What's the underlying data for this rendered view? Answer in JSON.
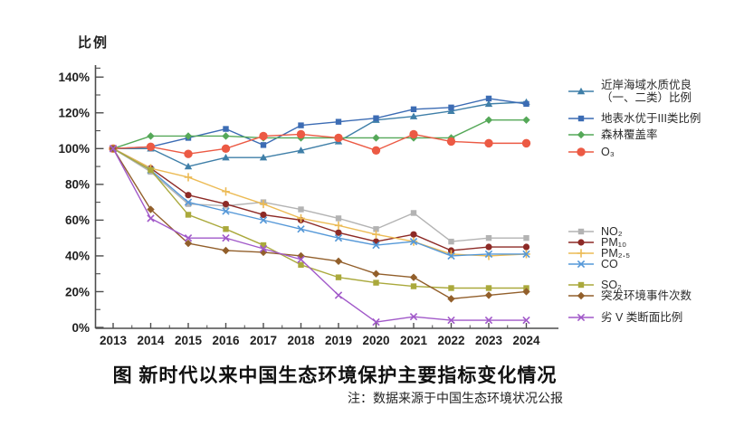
{
  "figure": {
    "title": "图 新时代以来中国生态环境保护主要指标变化情况",
    "note": "注：数据来源于中国生态环境状况公报",
    "y_axis_title": "比例"
  },
  "chart_data": {
    "type": "line",
    "title": "图 新时代以来中国生态环境保护主要指标变化情况",
    "note": "注：数据来源于中国生态环境状况公报",
    "xlabel": "",
    "ylabel": "比例",
    "x": [
      2013,
      2014,
      2015,
      2016,
      2017,
      2018,
      2019,
      2020,
      2021,
      2022,
      2023,
      2024
    ],
    "y_ticks": [
      0,
      20,
      40,
      60,
      80,
      100,
      120,
      140
    ],
    "y_tick_suffix": "%",
    "ylim": [
      0,
      147
    ],
    "grid": false,
    "legend_position": "right",
    "series": [
      {
        "id": "coastal",
        "name": "近岸海域水质优良",
        "name2": "（一、二类）比例",
        "marker": "triangle",
        "color": "#3f7fa8",
        "values": [
          100,
          100,
          90,
          95,
          95,
          99,
          104,
          116,
          118,
          121,
          125,
          126
        ]
      },
      {
        "id": "surface_water",
        "name": "地表水优于III类比例",
        "marker": "square",
        "color": "#3c6cb4",
        "values": [
          100,
          101,
          106,
          111,
          102,
          113,
          115,
          117,
          122,
          123,
          128,
          125
        ]
      },
      {
        "id": "forest",
        "name": "森林覆盖率",
        "marker": "diamond",
        "color": "#55a858",
        "values": [
          100,
          107,
          107,
          107,
          106,
          106,
          106,
          106,
          106,
          106,
          116,
          116
        ]
      },
      {
        "id": "o3",
        "name": "O₃",
        "marker": "circle-lg",
        "color": "#ec5a44",
        "values": [
          100,
          101,
          97,
          100,
          107,
          108,
          106,
          99,
          108,
          104,
          103,
          103
        ]
      },
      {
        "id": "no2",
        "name": "NO₂",
        "marker": "square",
        "color": "#b3b3b3",
        "values": [
          100,
          87,
          69,
          68,
          70,
          66,
          61,
          55,
          64,
          48,
          50,
          50
        ]
      },
      {
        "id": "pm10",
        "name": "PM₁₀",
        "marker": "circle",
        "color": "#8d2a26",
        "values": [
          100,
          89,
          74,
          69,
          63,
          60,
          53,
          48,
          52,
          43,
          45,
          45
        ]
      },
      {
        "id": "pm25",
        "name": "PM₂.₅",
        "marker": "plus",
        "color": "#ecbb55",
        "values": [
          100,
          89,
          84,
          76,
          69,
          61,
          57,
          52,
          48,
          41,
          40,
          41
        ]
      },
      {
        "id": "co",
        "name": "CO",
        "marker": "x",
        "color": "#5598d8",
        "values": [
          100,
          88,
          70,
          65,
          60,
          55,
          50,
          46,
          48,
          40,
          41,
          41
        ]
      },
      {
        "id": "so2",
        "name": "SO₂",
        "marker": "square",
        "color": "#aaa93c",
        "values": [
          100,
          88,
          63,
          55,
          46,
          35,
          28,
          25,
          23,
          22,
          22,
          22
        ]
      },
      {
        "id": "incidents",
        "name": "突发环境事件次数",
        "marker": "diamond",
        "color": "#925f2b",
        "values": [
          100,
          66,
          47,
          43,
          42,
          40,
          37,
          30,
          28,
          16,
          18,
          20
        ]
      },
      {
        "id": "inferior_v",
        "name": "劣 V 类断面比例",
        "marker": "x",
        "color": "#a159c9",
        "values": [
          100,
          61,
          50,
          50,
          44,
          38,
          18,
          3,
          6,
          4,
          4,
          4
        ]
      }
    ]
  }
}
